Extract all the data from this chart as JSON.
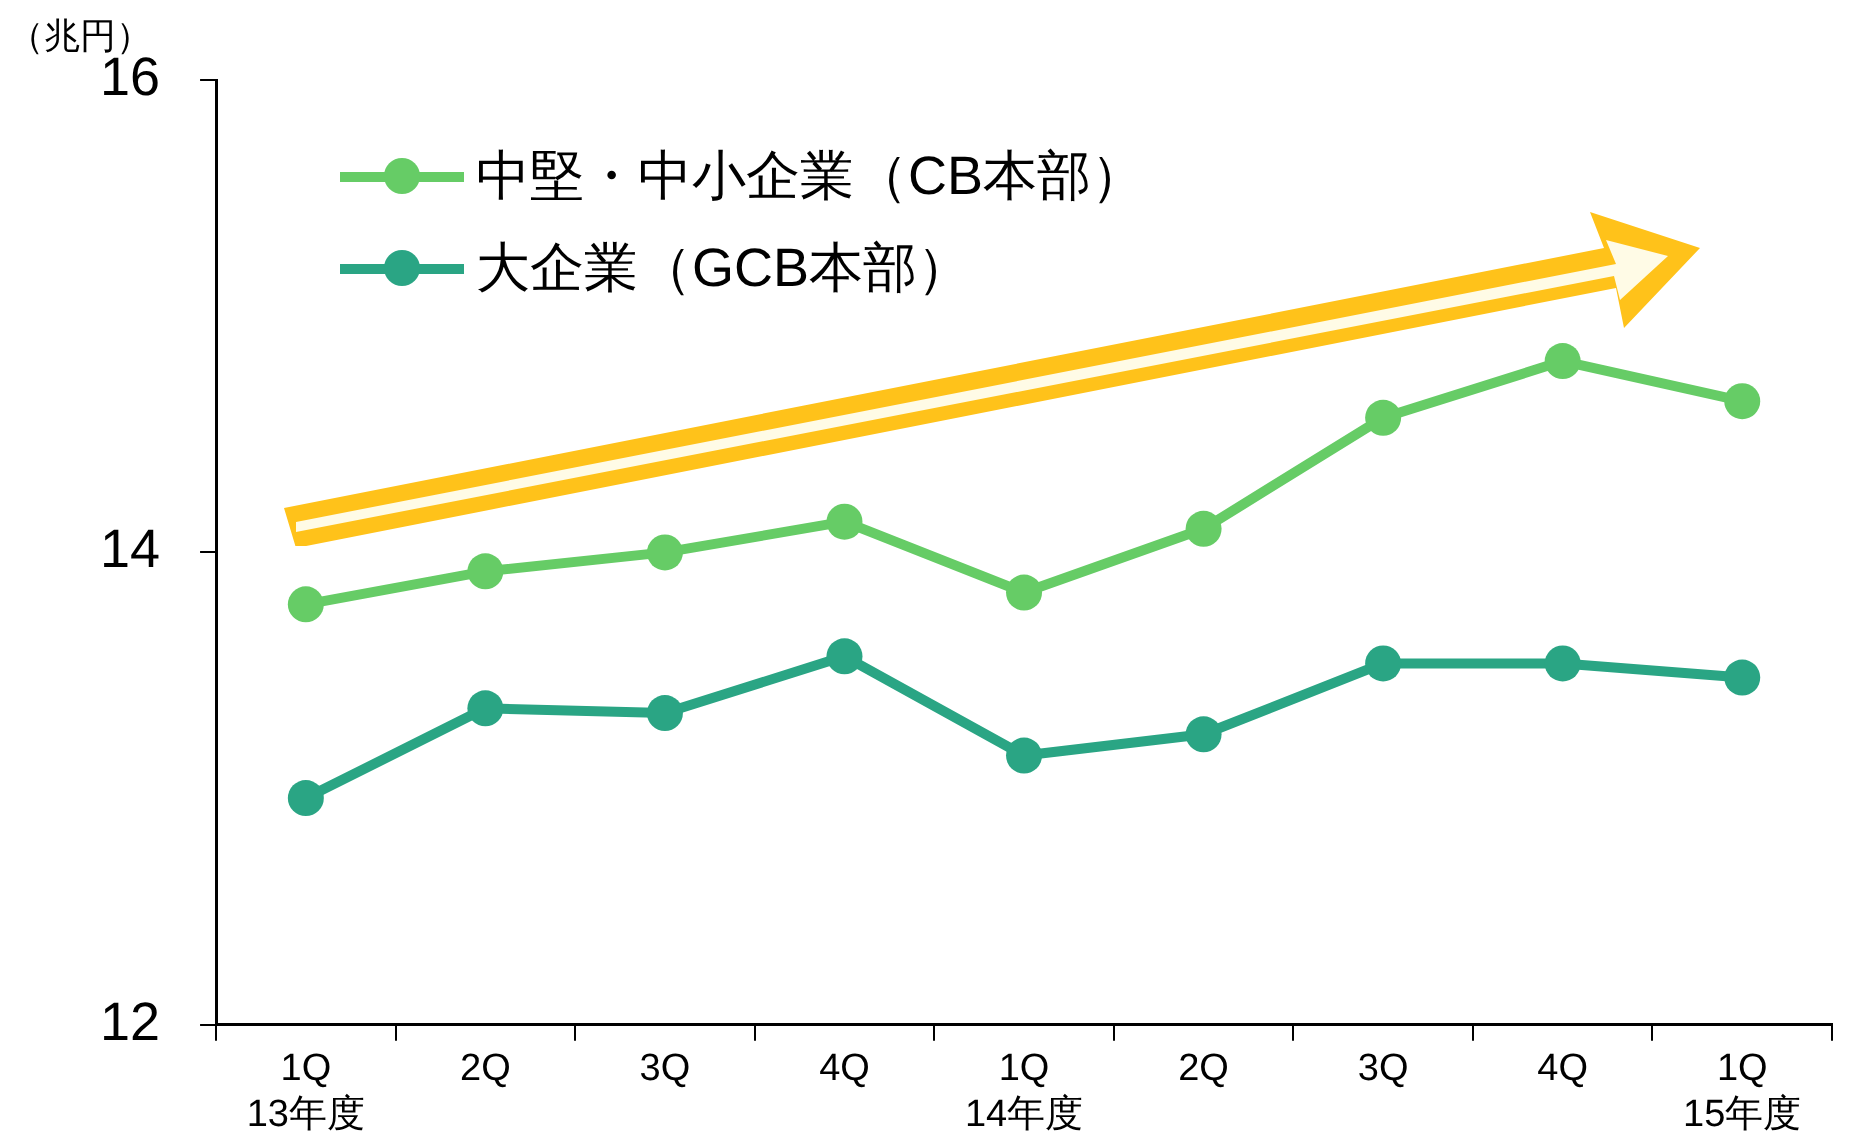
{
  "chart_data": {
    "type": "line",
    "ylabel": "（兆円）",
    "categories": [
      "1Q\n13年度",
      "2Q",
      "3Q",
      "4Q",
      "1Q\n14年度",
      "2Q",
      "3Q",
      "4Q",
      "1Q\n15年度"
    ],
    "series": [
      {
        "name": "中堅・中小企業（CB本部）",
        "color": "#66cc66",
        "values": [
          13.78,
          13.92,
          14.0,
          14.13,
          13.83,
          14.1,
          14.57,
          14.81,
          14.64
        ]
      },
      {
        "name": "大企業（GCB本部）",
        "color": "#2aa584",
        "values": [
          12.96,
          13.34,
          13.32,
          13.56,
          13.14,
          13.23,
          13.53,
          13.53,
          13.47
        ]
      }
    ],
    "ylim": [
      12,
      16
    ],
    "yticks": [
      12,
      14,
      16
    ],
    "grid": false,
    "legend": "top left",
    "marker": "circle",
    "line_style": "solid"
  }
}
